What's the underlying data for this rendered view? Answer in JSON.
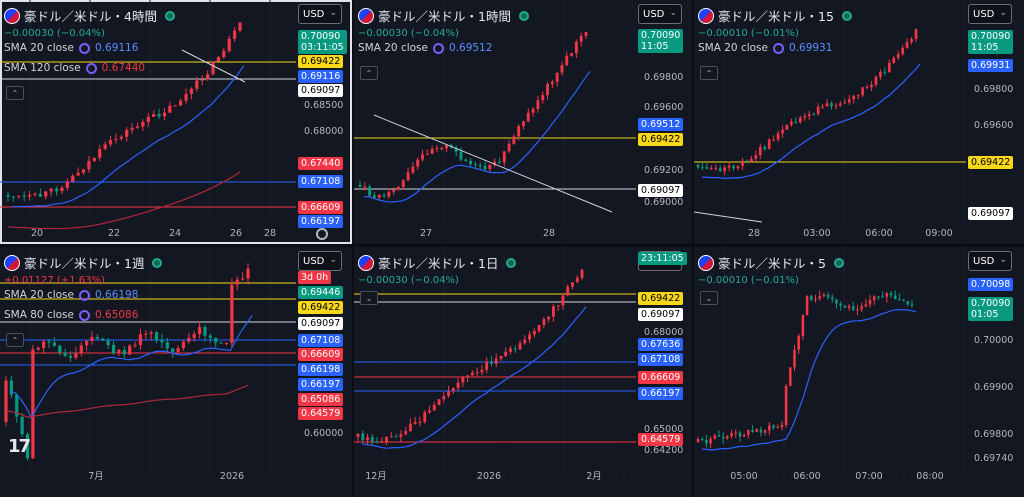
{
  "panes": [
    {
      "id": "p1",
      "title": "豪ドル／米ドル・4時間",
      "currency": "USD",
      "change": "−0.00030 (−0.04%)",
      "change_color": "green",
      "smas": [
        {
          "label": "SMA 20 close",
          "value": "0.69116",
          "color": "blue"
        },
        {
          "label": "SMA 120 close",
          "value": "0.67440",
          "color": "red"
        }
      ],
      "price_labels": [
        "0.68500",
        "0.68000"
      ],
      "time_labels": [
        "20",
        "22",
        "24",
        "26",
        "28"
      ],
      "tags": [
        {
          "text": "0.70090",
          "sub": "03:11:05",
          "style": "green"
        },
        {
          "text": "0.69422",
          "style": "yellow"
        },
        {
          "text": "0.69116",
          "style": "blue"
        },
        {
          "text": "0.69097",
          "style": "white"
        },
        {
          "text": "0.67440",
          "style": "red"
        },
        {
          "text": "0.67108",
          "style": "blue"
        },
        {
          "text": "0.66609",
          "style": "red"
        },
        {
          "text": "0.66197",
          "style": "blue"
        }
      ]
    },
    {
      "id": "p2",
      "title": "豪ドル／米ドル・1時間",
      "currency": "USD",
      "change": "−0.00030 (−0.04%)",
      "change_color": "green",
      "smas": [
        {
          "label": "SMA 20 close",
          "value": "0.69512",
          "color": "blue"
        }
      ],
      "price_labels": [
        "0.69800",
        "0.69600",
        "0.69200",
        "0.69000"
      ],
      "time_labels": [
        "27",
        "28"
      ],
      "tags": [
        {
          "text": "0.70090",
          "sub": "11:05",
          "style": "green"
        },
        {
          "text": "0.69512",
          "style": "blue"
        },
        {
          "text": "0.69422",
          "style": "yellow"
        },
        {
          "text": "0.69097",
          "style": "white"
        }
      ]
    },
    {
      "id": "p3",
      "title": "豪ドル／米ドル・15",
      "currency": "USD",
      "change": "−0.00010 (−0.01%)",
      "change_color": "green",
      "smas": [
        {
          "label": "SMA 20 close",
          "value": "0.69931",
          "color": "blue"
        }
      ],
      "price_labels": [
        "0.69800",
        "0.69600"
      ],
      "time_labels": [
        "28",
        "03:00",
        "06:00",
        "09:00"
      ],
      "tags": [
        {
          "text": "0.70090",
          "sub": "11:05",
          "style": "green"
        },
        {
          "text": "0.69931",
          "style": "blue"
        },
        {
          "text": "0.69422",
          "style": "yellow"
        },
        {
          "text": "0.69097",
          "style": "white"
        }
      ]
    },
    {
      "id": "p4",
      "title": "豪ドル／米ドル・1週",
      "currency": "USD",
      "change": "+0.01127 (+1.63%)",
      "change_color": "red",
      "smas": [
        {
          "label": "SMA 20 close",
          "value": "0.66198",
          "color": "blue"
        },
        {
          "label": "SMA 80 close",
          "value": "0.65086",
          "color": "red"
        }
      ],
      "price_labels": [
        "0.60000"
      ],
      "time_labels": [
        "7月",
        "2026"
      ],
      "tags": [
        {
          "text": "3d 0h",
          "style": "red"
        },
        {
          "text": "0.69446",
          "style": "green"
        },
        {
          "text": "0.69422",
          "style": "yellow"
        },
        {
          "text": "0.69097",
          "style": "white"
        },
        {
          "text": "0.67108",
          "style": "blue"
        },
        {
          "text": "0.66609",
          "style": "red"
        },
        {
          "text": "0.66198",
          "style": "blue"
        },
        {
          "text": "0.66197",
          "style": "blue"
        },
        {
          "text": "0.65086",
          "style": "red"
        },
        {
          "text": "0.64579",
          "style": "red"
        }
      ]
    },
    {
      "id": "p5",
      "title": "豪ドル／米ドル・1日",
      "currency": "USD",
      "change": "−0.00030 (−0.04%)",
      "change_color": "green",
      "smas": [],
      "price_labels": [
        "0.68000",
        "0.65000",
        "0.64200"
      ],
      "time_labels": [
        "12月",
        "2026",
        "2月"
      ],
      "tags": [
        {
          "text": "23:11:05",
          "style": "green"
        },
        {
          "text": "0.69422",
          "style": "yellow"
        },
        {
          "text": "0.69097",
          "style": "white"
        },
        {
          "text": "0.67636",
          "style": "blue"
        },
        {
          "text": "0.67108",
          "style": "blue"
        },
        {
          "text": "0.66609",
          "style": "red"
        },
        {
          "text": "0.66197",
          "style": "blue"
        },
        {
          "text": "0.64579",
          "style": "red"
        }
      ]
    },
    {
      "id": "p6",
      "title": "豪ドル／米ドル・5",
      "currency": "USD",
      "change": "−0.00010 (−0.01%)",
      "change_color": "green",
      "smas": [],
      "price_labels": [
        "0.70000",
        "0.69900",
        "0.69800",
        "0.69740"
      ],
      "time_labels": [
        "05:00",
        "06:00",
        "07:00",
        "08:00"
      ],
      "tags": [
        {
          "text": "0.70098",
          "style": "blue"
        },
        {
          "text": "0.70090",
          "sub": "01:05",
          "style": "green"
        }
      ]
    }
  ],
  "logo": "17",
  "chart_data": [
    {
      "type": "candlestick",
      "title": "豪ドル／米ドル・4時間",
      "x_ticks": [
        "20",
        "22",
        "24",
        "26",
        "28"
      ],
      "series": [
        {
          "name": "SMA 20 close",
          "last": 0.69116
        },
        {
          "name": "SMA 120 close",
          "last": 0.6744
        }
      ],
      "levels": [
        0.69422,
        0.69097,
        0.67108,
        0.66609,
        0.66197
      ],
      "last": 0.7009
    },
    {
      "type": "candlestick",
      "title": "豪ドル／米ドル・1時間",
      "x_ticks": [
        "27",
        "28"
      ],
      "series": [
        {
          "name": "SMA 20 close",
          "last": 0.69512
        }
      ],
      "levels": [
        0.69422,
        0.69097
      ],
      "last": 0.7009
    },
    {
      "type": "candlestick",
      "title": "豪ドル／米ドル・15",
      "x_ticks": [
        "28",
        "03:00",
        "06:00",
        "09:00"
      ],
      "series": [
        {
          "name": "SMA 20 close",
          "last": 0.69931
        }
      ],
      "levels": [
        0.69422,
        0.69097
      ],
      "last": 0.7009
    },
    {
      "type": "candlestick",
      "title": "豪ドル／米ドル・1週",
      "x_ticks": [
        "7月",
        "2026"
      ],
      "series": [
        {
          "name": "SMA 20 close",
          "last": 0.66198
        },
        {
          "name": "SMA 80 close",
          "last": 0.65086
        }
      ],
      "levels": [
        0.69422,
        0.69097,
        0.67108,
        0.66609,
        0.66197,
        0.64579
      ],
      "last": 0.69446
    },
    {
      "type": "candlestick",
      "title": "豪ドル／米ドル・1日",
      "x_ticks": [
        "12月",
        "2026",
        "2月"
      ],
      "series": [
        {
          "last": 0.67636
        }
      ],
      "levels": [
        0.69422,
        0.69097,
        0.67108,
        0.66609,
        0.66197,
        0.64579
      ],
      "last": 0.7009
    },
    {
      "type": "candlestick",
      "title": "豪ドル／米ドル・5",
      "x_ticks": [
        "05:00",
        "06:00",
        "07:00",
        "08:00"
      ],
      "series": [
        {
          "last": 0.70098
        }
      ],
      "levels": [],
      "last": 0.7009
    }
  ]
}
